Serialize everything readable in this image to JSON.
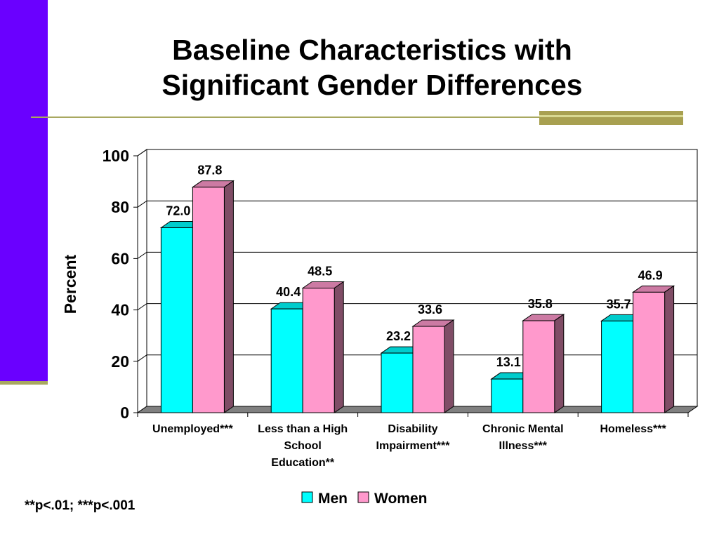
{
  "slide": {
    "title_line1": "Baseline Characteristics with",
    "title_line2": "Significant Gender Differences",
    "footnote": "**p<.01; ***p<.001"
  },
  "colors": {
    "accent_bar": "#6a00ff",
    "rule": "#a8a050",
    "men": "#00ffff",
    "women": "#ff99cc"
  },
  "chart_data": {
    "type": "bar",
    "ylabel": "Percent",
    "ylim": [
      0,
      100
    ],
    "yticks": [
      0,
      20,
      40,
      60,
      80,
      100
    ],
    "grid": true,
    "legend_position": "bottom",
    "categories": [
      [
        "Unemployed***"
      ],
      [
        "Less than a High",
        "School",
        "Education**"
      ],
      [
        "Disability",
        "Impairment***"
      ],
      [
        "Chronic Mental",
        "Illness***"
      ],
      [
        "Homeless***"
      ]
    ],
    "series": [
      {
        "name": "Men",
        "values": [
          72.0,
          40.4,
          23.2,
          13.1,
          35.7
        ],
        "labels": [
          "72.0",
          "40.4",
          "23.2",
          "13.1",
          "35.7"
        ]
      },
      {
        "name": "Women",
        "values": [
          87.8,
          48.5,
          33.6,
          35.8,
          46.9
        ],
        "labels": [
          "87.8",
          "48.5",
          "33.6",
          "35.8",
          "46.9"
        ]
      }
    ]
  }
}
